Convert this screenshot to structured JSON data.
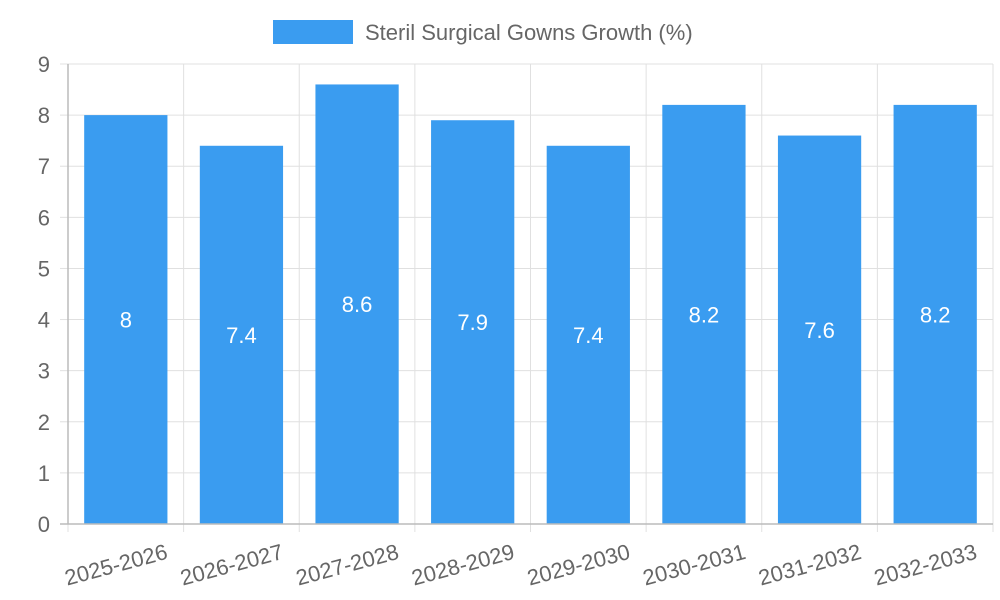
{
  "chart_data": {
    "type": "bar",
    "title": "",
    "xlabel": "",
    "ylabel": "",
    "categories": [
      "2025-2026",
      "2026-2027",
      "2027-2028",
      "2028-2029",
      "2029-2030",
      "2030-2031",
      "2031-2032",
      "2032-2033"
    ],
    "series": [
      {
        "name": "Steril Surgical Gowns Growth (%)",
        "values": [
          8,
          7.4,
          8.6,
          7.9,
          7.4,
          8.2,
          7.6,
          8.2
        ],
        "color": "#3a9cf0"
      }
    ],
    "ylim": [
      0,
      9
    ],
    "yticks": [
      "0",
      "1",
      "2",
      "3",
      "4",
      "5",
      "6",
      "7",
      "8",
      "9"
    ],
    "data_labels": [
      "8",
      "7.4",
      "8.6",
      "7.9",
      "7.4",
      "8.2",
      "7.6",
      "8.2"
    ],
    "grid": true,
    "legend_position": "top-center"
  },
  "colors": {
    "bar": "#3a9cf0",
    "grid": "#e0e0e0",
    "axis": "#bbbbbb",
    "text": "#666666",
    "label": "#ffffff"
  }
}
